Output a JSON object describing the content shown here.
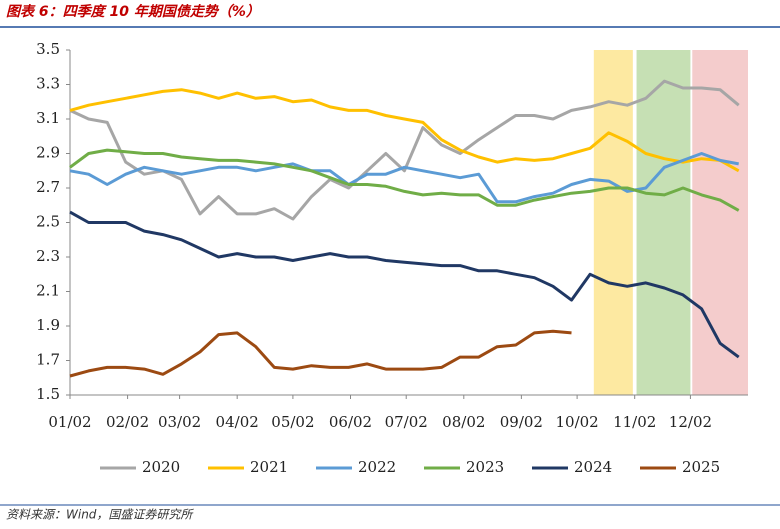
{
  "chart_data": {
    "type": "line",
    "title": "图表 6：四季度 10 年期国债走势（%）",
    "source": "资料来源：Wind，国盛证券研究所",
    "x": [
      1,
      11,
      21,
      31,
      41,
      51,
      61,
      71,
      81,
      91,
      101,
      111,
      121,
      131,
      141,
      151,
      161,
      171,
      181,
      191,
      201,
      211,
      221,
      231,
      241,
      251,
      261,
      271,
      281,
      291,
      301,
      311,
      321,
      331,
      341,
      351,
      361
    ],
    "xlim": [
      1,
      366
    ],
    "xticks": [
      {
        "value": 1,
        "label": "01/02"
      },
      {
        "value": 32,
        "label": "02/02"
      },
      {
        "value": 60,
        "label": "03/02"
      },
      {
        "value": 91,
        "label": "04/02"
      },
      {
        "value": 121,
        "label": "05/02"
      },
      {
        "value": 152,
        "label": "06/02"
      },
      {
        "value": 182,
        "label": "07/02"
      },
      {
        "value": 213,
        "label": "08/02"
      },
      {
        "value": 244,
        "label": "09/02"
      },
      {
        "value": 274,
        "label": "10/02"
      },
      {
        "value": 305,
        "label": "11/02"
      },
      {
        "value": 335,
        "label": "12/02"
      }
    ],
    "ylim": [
      1.5,
      3.5
    ],
    "yticks": [
      1.5,
      1.7,
      1.9,
      2.1,
      2.3,
      2.5,
      2.7,
      2.9,
      3.1,
      3.3,
      3.5
    ],
    "bands": [
      {
        "start": 283,
        "end": 304,
        "color": "#fde9a1"
      },
      {
        "start": 306,
        "end": 335,
        "color": "#c6e0b4"
      },
      {
        "start": 336,
        "end": 366,
        "color": "#f4cccc"
      }
    ],
    "legend": "bottom",
    "series": [
      {
        "name": "2020",
        "color": "#a6a6a6",
        "values": [
          3.15,
          3.1,
          3.08,
          2.85,
          2.78,
          2.8,
          2.75,
          2.55,
          2.65,
          2.55,
          2.55,
          2.58,
          2.52,
          2.65,
          2.75,
          2.7,
          2.8,
          2.9,
          2.8,
          3.05,
          2.95,
          2.9,
          2.98,
          3.05,
          3.12,
          3.12,
          3.1,
          3.15,
          3.17,
          3.2,
          3.18,
          3.22,
          3.32,
          3.28,
          3.28,
          3.27,
          3.18
        ]
      },
      {
        "name": "2021",
        "color": "#ffc000",
        "values": [
          3.15,
          3.18,
          3.2,
          3.22,
          3.24,
          3.26,
          3.27,
          3.25,
          3.22,
          3.25,
          3.22,
          3.23,
          3.2,
          3.21,
          3.17,
          3.15,
          3.15,
          3.12,
          3.1,
          3.08,
          2.98,
          2.92,
          2.88,
          2.85,
          2.87,
          2.86,
          2.87,
          2.9,
          2.93,
          3.02,
          2.97,
          2.9,
          2.87,
          2.85,
          2.87,
          2.86,
          2.8
        ]
      },
      {
        "name": "2022",
        "color": "#5b9bd5",
        "values": [
          2.8,
          2.78,
          2.72,
          2.78,
          2.82,
          2.8,
          2.78,
          2.8,
          2.82,
          2.82,
          2.8,
          2.82,
          2.84,
          2.8,
          2.8,
          2.72,
          2.78,
          2.78,
          2.82,
          2.8,
          2.78,
          2.76,
          2.78,
          2.62,
          2.62,
          2.65,
          2.67,
          2.72,
          2.75,
          2.74,
          2.68,
          2.7,
          2.82,
          2.86,
          2.9,
          2.86,
          2.84
        ]
      },
      {
        "name": "2023",
        "color": "#70ad47",
        "values": [
          2.82,
          2.9,
          2.92,
          2.91,
          2.9,
          2.9,
          2.88,
          2.87,
          2.86,
          2.86,
          2.85,
          2.84,
          2.82,
          2.8,
          2.76,
          2.72,
          2.72,
          2.71,
          2.68,
          2.66,
          2.67,
          2.66,
          2.66,
          2.6,
          2.6,
          2.63,
          2.65,
          2.67,
          2.68,
          2.7,
          2.7,
          2.67,
          2.66,
          2.7,
          2.66,
          2.63,
          2.57
        ]
      },
      {
        "name": "2024",
        "color": "#203864",
        "values": [
          2.56,
          2.5,
          2.5,
          2.5,
          2.45,
          2.43,
          2.4,
          2.35,
          2.3,
          2.32,
          2.3,
          2.3,
          2.28,
          2.3,
          2.32,
          2.3,
          2.3,
          2.28,
          2.27,
          2.26,
          2.25,
          2.25,
          2.22,
          2.22,
          2.2,
          2.18,
          2.13,
          2.05,
          2.2,
          2.15,
          2.13,
          2.15,
          2.12,
          2.08,
          2.0,
          1.8,
          1.72
        ]
      },
      {
        "name": "2025",
        "color": "#9c4a12",
        "values": [
          1.61,
          1.64,
          1.66,
          1.66,
          1.65,
          1.62,
          1.68,
          1.75,
          1.85,
          1.86,
          1.78,
          1.66,
          1.65,
          1.67,
          1.66,
          1.66,
          1.68,
          1.65,
          1.65,
          1.65,
          1.66,
          1.72,
          1.72,
          1.78,
          1.79,
          1.86,
          1.87,
          1.86,
          null,
          null,
          null,
          null,
          null,
          null,
          null,
          null,
          null
        ]
      }
    ]
  }
}
